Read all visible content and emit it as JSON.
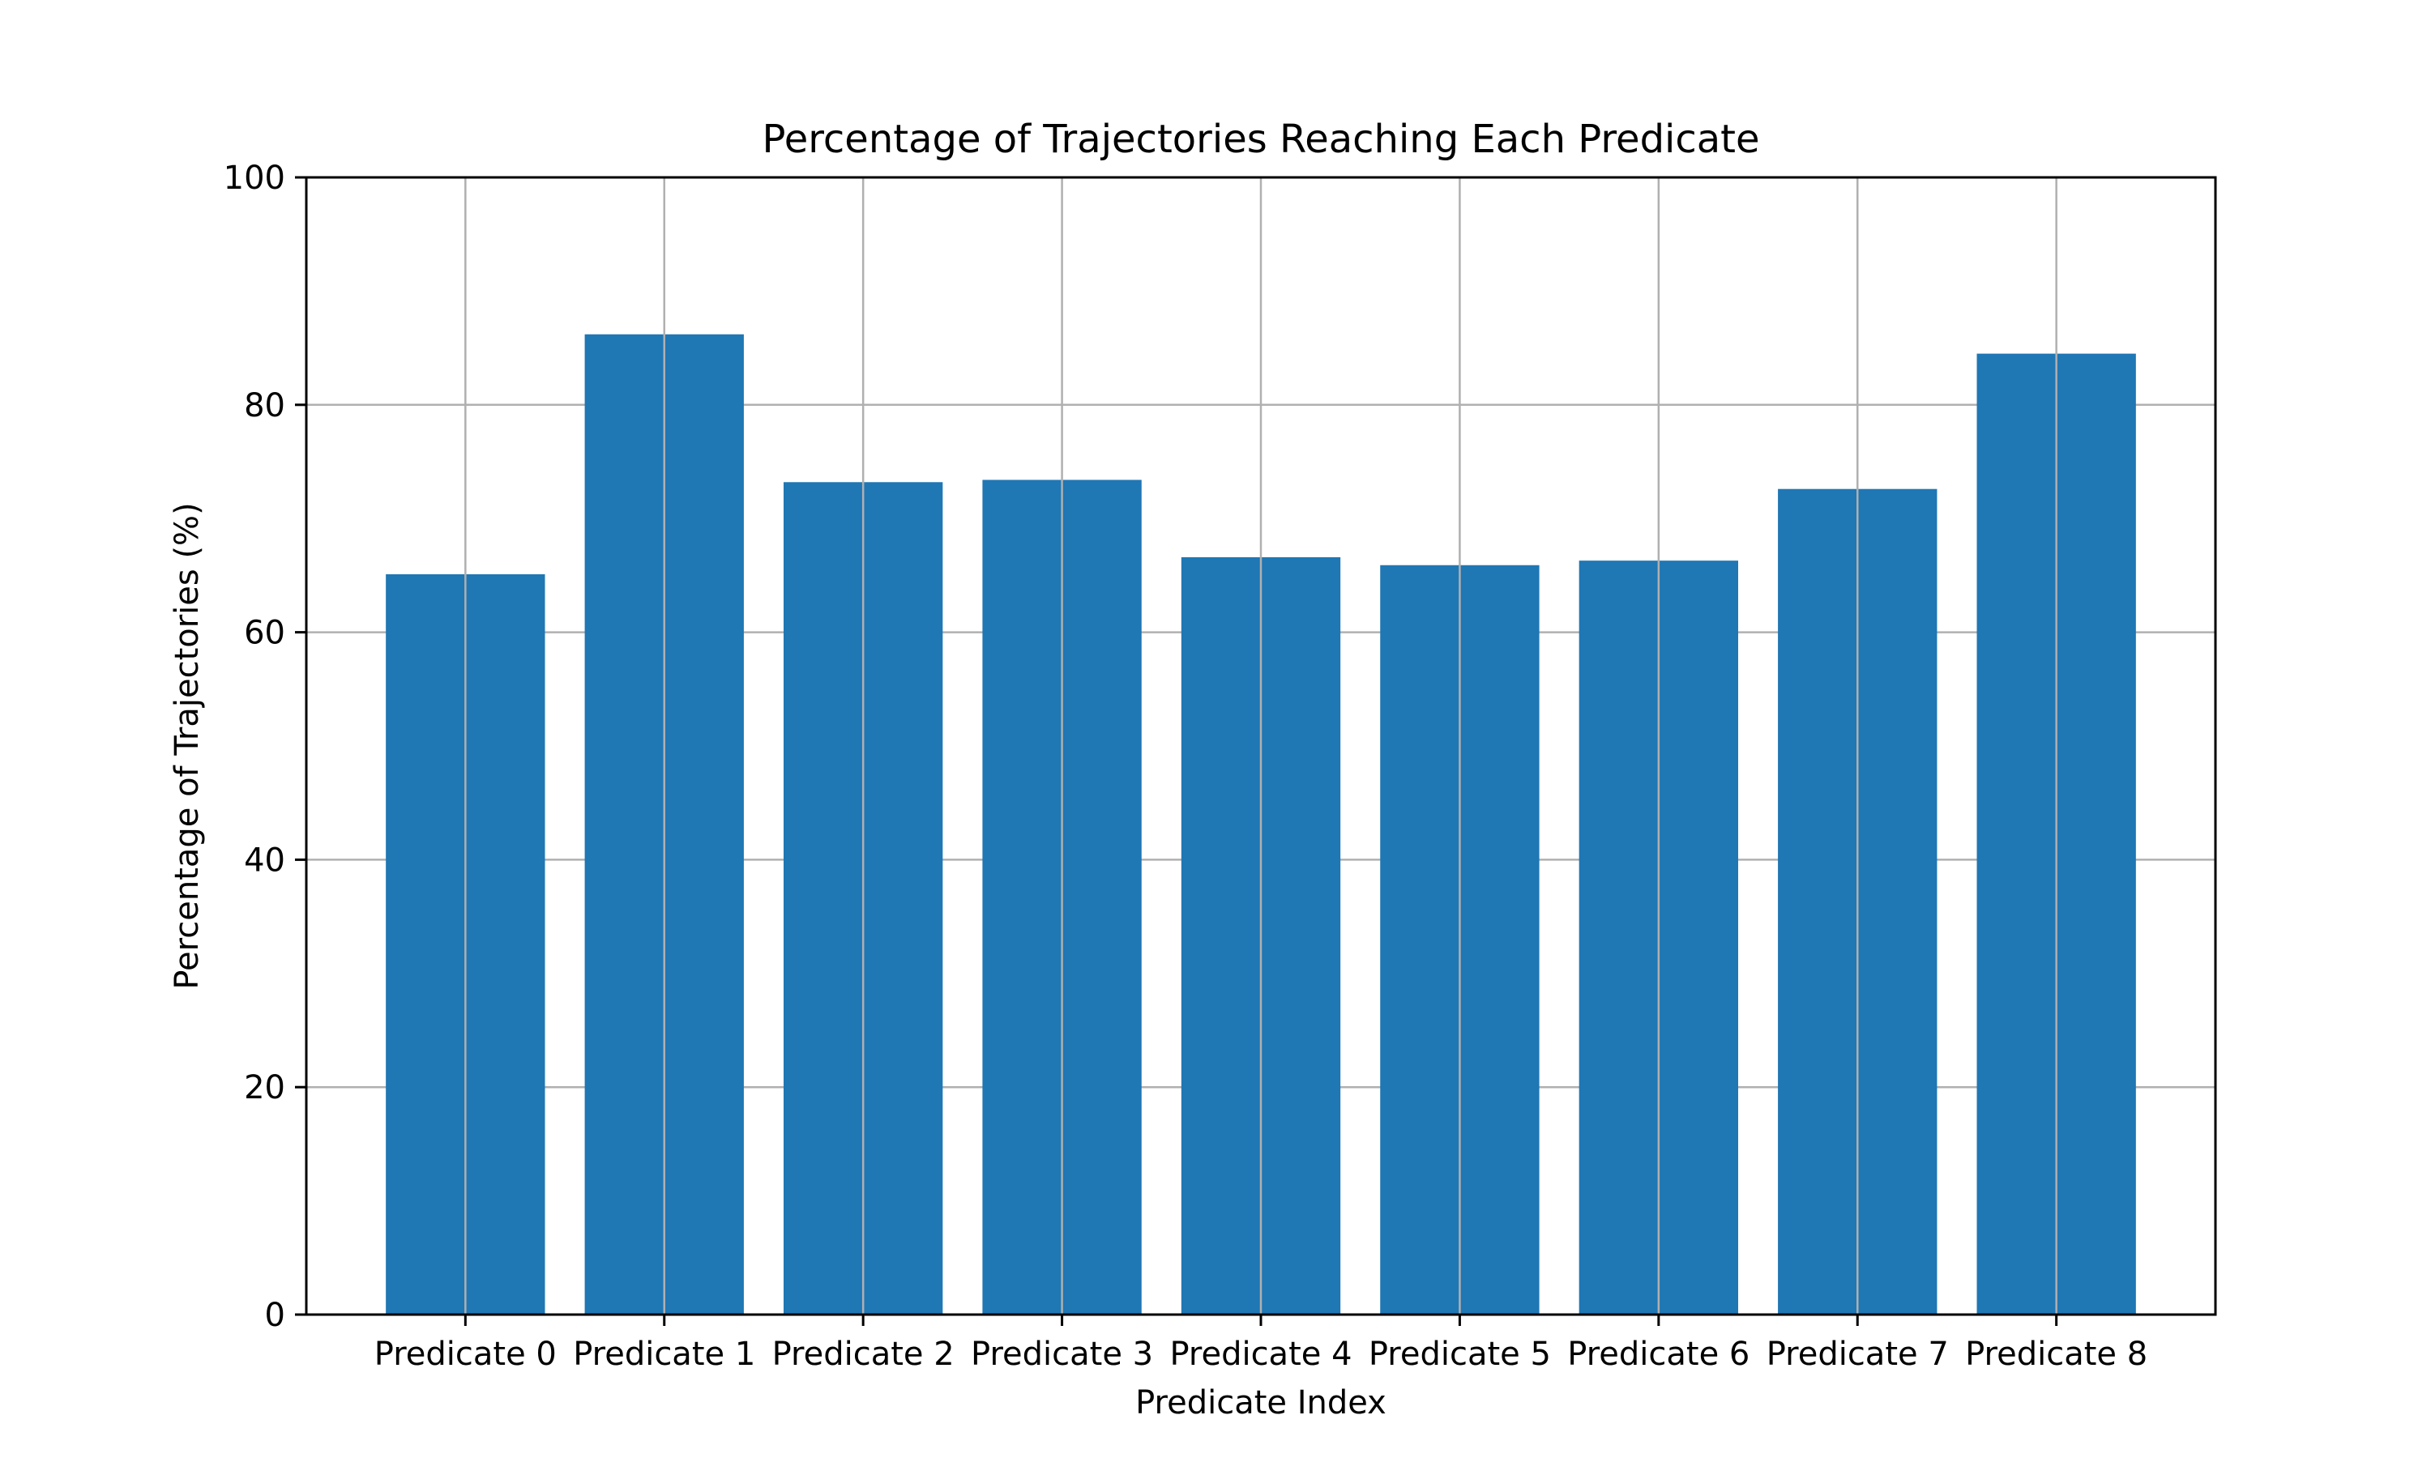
{
  "chart_data": {
    "type": "bar",
    "title": "Percentage of Trajectories Reaching Each Predicate",
    "xlabel": "Predicate Index",
    "ylabel": "Percentage of Trajectories (%)",
    "categories": [
      "Predicate 0",
      "Predicate 1",
      "Predicate 2",
      "Predicate 3",
      "Predicate 4",
      "Predicate 5",
      "Predicate 6",
      "Predicate 7",
      "Predicate 8"
    ],
    "values": [
      65.1,
      86.2,
      73.2,
      73.4,
      66.6,
      65.9,
      66.3,
      72.6,
      84.5
    ],
    "ylim": [
      0,
      100
    ],
    "yticks": [
      0,
      20,
      40,
      60,
      80,
      100
    ],
    "grid": true,
    "bar_color": "#1f77b4",
    "grid_color": "#b0b0b0"
  }
}
